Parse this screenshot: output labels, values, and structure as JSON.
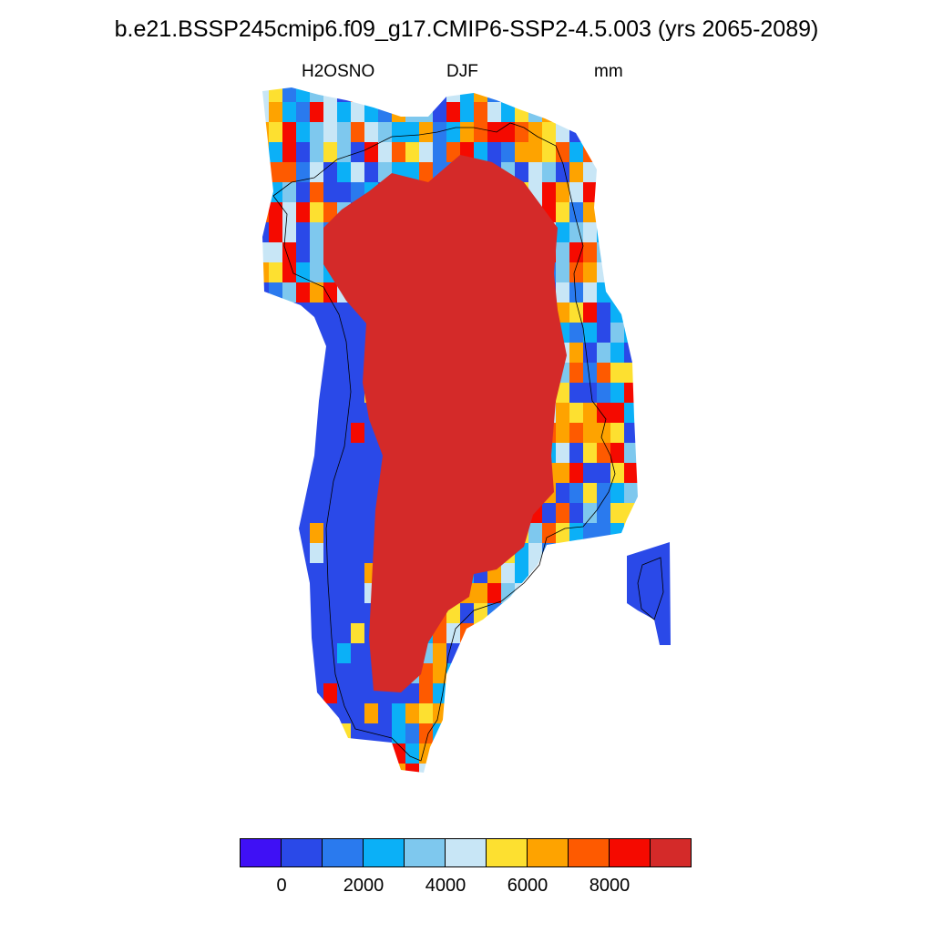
{
  "title": "b.e21.BSSP245cmip6.f09_g17.CMIP6-SSP2-4.5.003 (yrs 2065-2089)",
  "subtitle": {
    "variable": "H2OSNO",
    "season": "DJF",
    "units": "mm"
  },
  "colorbar": {
    "colors": [
      "#3f10f5",
      "#2a49e8",
      "#2a7aee",
      "#0bb0f7",
      "#7ec8ee",
      "#c8e6f6",
      "#fde030",
      "#fea300",
      "#fe5a00",
      "#f50a00",
      "#d42a29"
    ],
    "tick_labels": [
      "0",
      "2000",
      "4000",
      "6000",
      "8000"
    ]
  },
  "map": {
    "region": "Greenland",
    "palette": {
      "interior": "#d42a29",
      "coast": [
        "#2a49e8",
        "#2a7aee",
        "#0bb0f7",
        "#7ec8ee",
        "#c8e6f6",
        "#fde030",
        "#fea300",
        "#fe5a00",
        "#f50a00"
      ]
    }
  }
}
